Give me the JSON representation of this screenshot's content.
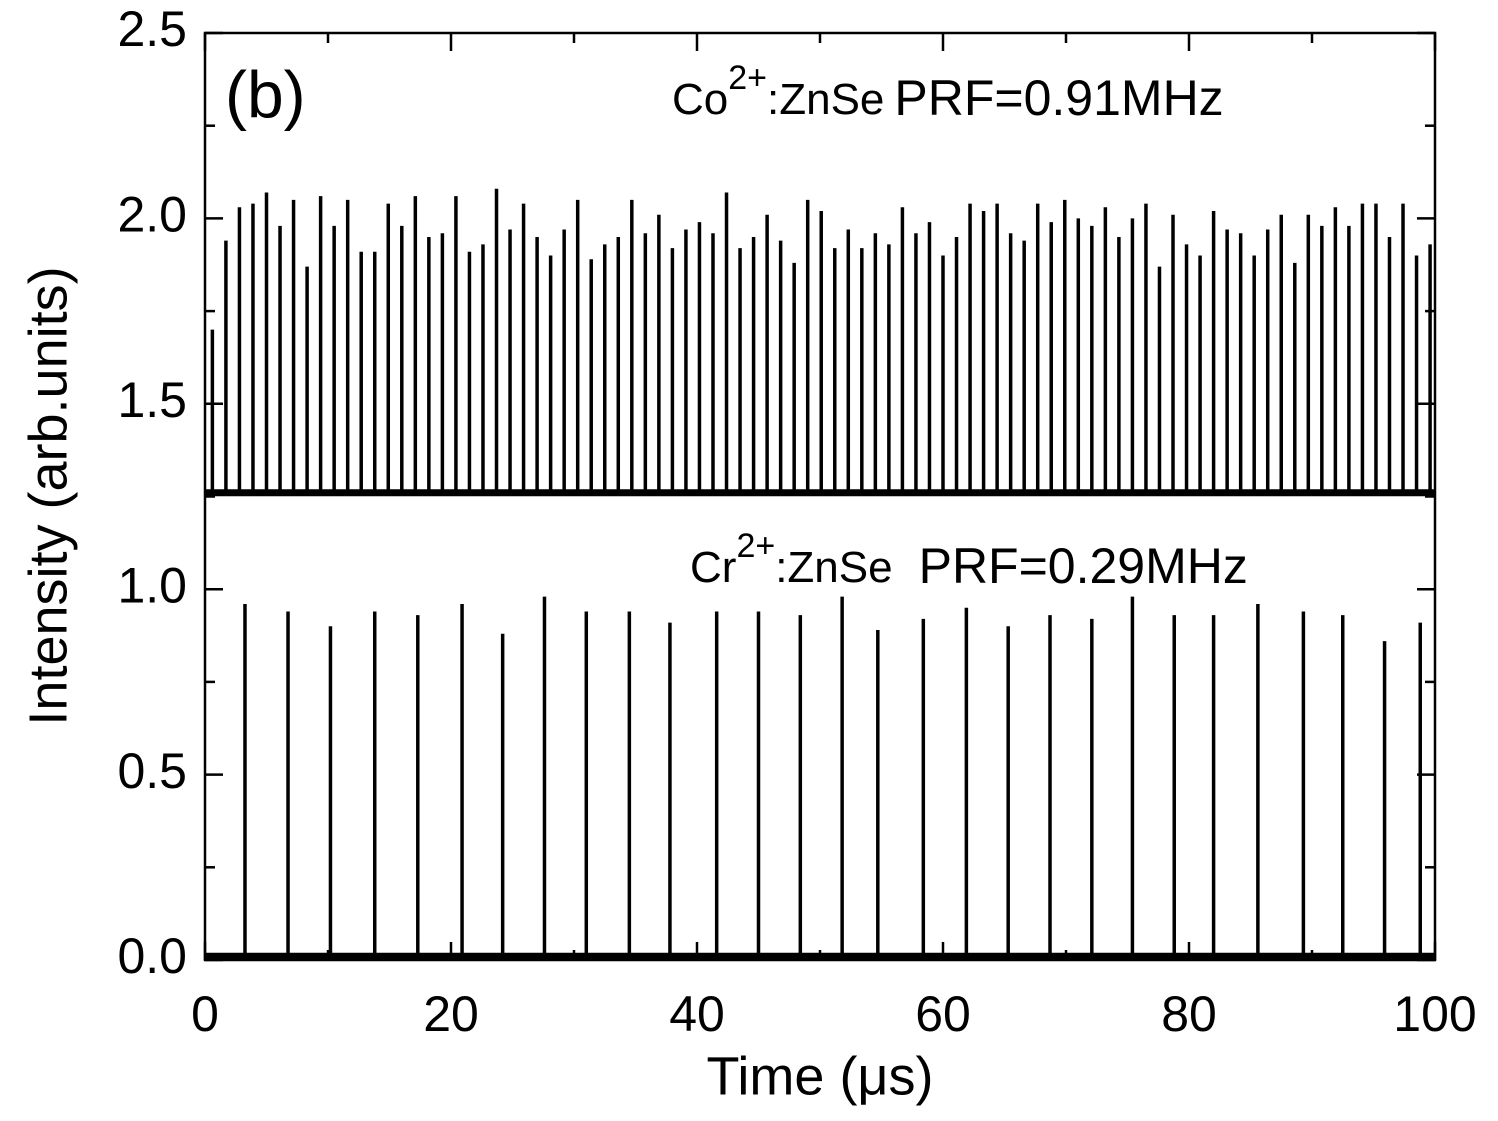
{
  "chart_data": {
    "type": "pulse",
    "panel_label": "(b)",
    "x_label": "Time (μs)",
    "y_label": "Intensity (arb.units)",
    "xlim": [
      0,
      100
    ],
    "xticks": [
      0,
      20,
      40,
      60,
      80,
      100
    ],
    "xminorticks": [
      10,
      30,
      50,
      70,
      90
    ],
    "ylim": [
      0,
      2.5
    ],
    "yticks": [
      {
        "value": 0,
        "label": "0.0"
      },
      0.5,
      {
        "value": 1,
        "label": "1.0"
      },
      1.5,
      {
        "value": 2,
        "label": "2.0"
      },
      2.5
    ],
    "yminorticks": [
      0.25,
      0.75,
      1.25,
      1.75,
      2.25
    ],
    "series": [
      {
        "label": {
          "ion": "Co",
          "charge": "2+",
          "host": ":ZnSe",
          "prf": "PRF=0.91MHz"
        },
        "color": "#000000",
        "baseline": 1.26,
        "x": [
          0.6,
          1.7,
          2.8,
          3.9,
          5.0,
          6.1,
          7.2,
          8.3,
          9.4,
          10.5,
          11.6,
          12.7,
          13.8,
          14.9,
          16.0,
          17.1,
          18.2,
          19.3,
          20.4,
          21.5,
          22.6,
          23.7,
          24.8,
          25.9,
          27.0,
          28.1,
          29.2,
          30.3,
          31.4,
          32.5,
          33.6,
          34.7,
          35.8,
          36.9,
          38.0,
          39.1,
          40.2,
          41.3,
          42.4,
          43.5,
          44.6,
          45.7,
          46.8,
          47.9,
          49.0,
          50.1,
          51.2,
          52.3,
          53.4,
          54.5,
          55.6,
          56.7,
          57.8,
          58.9,
          60.0,
          61.1,
          62.2,
          63.3,
          64.4,
          65.5,
          66.6,
          67.7,
          68.8,
          69.9,
          71.0,
          72.1,
          73.2,
          74.3,
          75.4,
          76.5,
          77.6,
          78.7,
          79.8,
          80.9,
          82.0,
          83.1,
          84.2,
          85.3,
          86.4,
          87.5,
          88.6,
          89.7,
          90.8,
          91.9,
          93.0,
          94.1,
          95.2,
          96.3,
          97.4,
          98.5,
          99.6
        ],
        "values": [
          1.7,
          1.94,
          2.03,
          2.04,
          2.07,
          1.98,
          2.05,
          1.87,
          2.06,
          1.98,
          2.05,
          1.91,
          1.91,
          2.04,
          1.98,
          2.06,
          1.95,
          1.96,
          2.06,
          1.91,
          1.93,
          2.08,
          1.97,
          2.04,
          1.95,
          1.9,
          1.97,
          2.05,
          1.89,
          1.93,
          1.95,
          2.05,
          1.96,
          2.01,
          1.92,
          1.97,
          1.99,
          1.96,
          2.07,
          1.92,
          1.95,
          2.01,
          1.94,
          1.88,
          2.05,
          2.02,
          1.92,
          1.97,
          1.92,
          1.96,
          1.93,
          2.03,
          1.96,
          1.99,
          1.9,
          1.95,
          2.04,
          2.02,
          2.04,
          1.96,
          1.94,
          2.04,
          1.99,
          2.05,
          2.0,
          1.98,
          2.03,
          1.95,
          2.0,
          2.04,
          1.87,
          2.01,
          1.93,
          1.9,
          2.02,
          1.97,
          1.96,
          1.9,
          1.97,
          2.01,
          1.88,
          2.01,
          1.98,
          2.03,
          1.98,
          2.04,
          2.04,
          1.95,
          2.04,
          1.9,
          1.93
        ]
      },
      {
        "label": {
          "ion": "Cr",
          "charge": "2+",
          "host": ":ZnSe",
          "prf": "PRF=0.29MHz"
        },
        "color": "#000000",
        "baseline": 0.01,
        "x": [
          3.25,
          6.75,
          10.2,
          13.8,
          17.3,
          20.9,
          24.2,
          27.6,
          31.0,
          34.5,
          37.8,
          41.6,
          45.0,
          48.4,
          51.8,
          54.7,
          58.4,
          61.9,
          65.3,
          68.7,
          72.1,
          75.4,
          78.8,
          82.0,
          85.6,
          89.3,
          92.5,
          95.9,
          98.8
        ],
        "values": [
          0.96,
          0.94,
          0.9,
          0.94,
          0.93,
          0.96,
          0.88,
          0.98,
          0.94,
          0.94,
          0.91,
          0.94,
          0.94,
          0.93,
          0.98,
          0.89,
          0.92,
          0.95,
          0.9,
          0.93,
          0.92,
          0.98,
          0.93,
          0.93,
          0.96,
          0.94,
          0.93,
          0.86,
          0.91
        ]
      }
    ]
  }
}
